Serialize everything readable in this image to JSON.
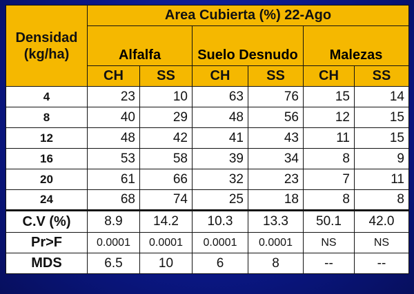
{
  "table": {
    "corner_label": "Densidad (kg/ha)",
    "title": "Area Cubierta (%) 22-Ago",
    "groups": [
      "Alfalfa",
      "Suelo Desnudo",
      "Malezas"
    ],
    "subheaders": [
      "CH",
      "SS",
      "CH",
      "SS",
      "CH",
      "SS"
    ],
    "rows": [
      {
        "density": "4",
        "values": [
          "23",
          "10",
          "63",
          "76",
          "15",
          "14"
        ]
      },
      {
        "density": "8",
        "values": [
          "40",
          "29",
          "48",
          "56",
          "12",
          "15"
        ]
      },
      {
        "density": "12",
        "values": [
          "48",
          "42",
          "41",
          "43",
          "11",
          "15"
        ]
      },
      {
        "density": "16",
        "values": [
          "53",
          "58",
          "39",
          "34",
          "8",
          "9"
        ]
      },
      {
        "density": "20",
        "values": [
          "61",
          "66",
          "32",
          "23",
          "7",
          "11"
        ]
      },
      {
        "density": "24",
        "values": [
          "68",
          "74",
          "25",
          "18",
          "8",
          "8"
        ]
      }
    ],
    "stats": [
      {
        "label": "C.V (%)",
        "values": [
          "8.9",
          "14.2",
          "10.3",
          "13.3",
          "50.1",
          "42.0"
        ]
      },
      {
        "label": "Pr>F",
        "values": [
          "0.0001",
          "0.0001",
          "0.0001",
          "0.0001",
          "NS",
          "NS"
        ]
      },
      {
        "label": "MDS",
        "values": [
          "6.5",
          "10",
          "6",
          "8",
          "--",
          "--"
        ]
      }
    ]
  },
  "colors": {
    "header": "#f5b800",
    "background": "#0b1a8a",
    "cells": "#ffffff"
  }
}
